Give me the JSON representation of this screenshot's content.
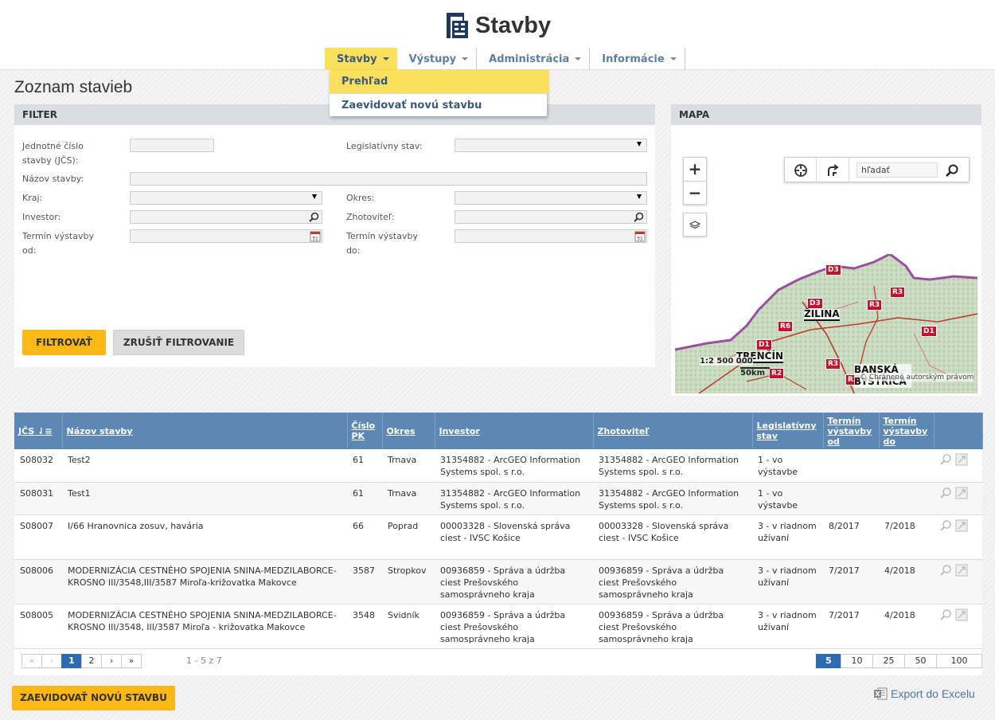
{
  "app": {
    "logo_text": "Stavby"
  },
  "nav": {
    "items": [
      {
        "label": "Stavby"
      },
      {
        "label": "Výstupy"
      },
      {
        "label": "Administrácia"
      },
      {
        "label": "Informácie"
      }
    ],
    "dropdown": [
      {
        "label": "Prehľad"
      },
      {
        "label": "Zaevidovať novú stavbu"
      }
    ]
  },
  "page": {
    "title": "Zoznam stavieb"
  },
  "filter": {
    "header": "FILTER",
    "labels": {
      "jcs": "Jednotné číslo stavby (JČS):",
      "legislativny_stav": "Legislatívny stav:",
      "nazov": "Názov stavby:",
      "kraj": "Kraj:",
      "okres": "Okres:",
      "investor": "Investor:",
      "zhotovitel": "Zhotoviteľ:",
      "termin_od": "Termín výstavby od:",
      "termin_do": "Termín výstavby do:"
    },
    "buttons": {
      "filter": "FILTROVAŤ",
      "reset": "ZRUŠIŤ FILTROVANIE"
    }
  },
  "map": {
    "header": "MAPA",
    "zoom_in": "+",
    "zoom_out": "−",
    "search_placeholder": "hľadať",
    "scale": "1:2 500 000",
    "scale_km": "50km",
    "copyright": "© Chránené autorským právom",
    "towns": [
      "ŽILINA",
      "TRENČÍN",
      "BANSKÁ BYSTRICA"
    ],
    "roads": [
      "D3",
      "D3",
      "R3",
      "R3",
      "R6",
      "D1",
      "D1",
      "R3",
      "R2",
      "R2"
    ]
  },
  "table": {
    "columns": [
      "JČS",
      "Názov stavby",
      "Číslo PK",
      "Okres",
      "Investor",
      "Zhotoviteľ",
      "Legislatívny stav",
      "Termín výstavby od",
      "Termín výstavby do",
      ""
    ],
    "rows": [
      {
        "jcs": "S08032",
        "nazov": "Test2",
        "pk": "61",
        "okres": "Trnava",
        "investor": "31354882 - ArcGEO Information Systems spol. s r.o.",
        "zhotovitel": "31354882 - ArcGEO Information Systems spol. s r.o.",
        "stav": "1 - vo výstavbe",
        "od": "",
        "do": ""
      },
      {
        "jcs": "S08031",
        "nazov": "Test1",
        "pk": "61",
        "okres": "Trnava",
        "investor": "31354882 - ArcGEO Information Systems spol. s r.o.",
        "zhotovitel": "31354882 - ArcGEO Information Systems spol. s r.o.",
        "stav": "1 - vo výstavbe",
        "od": "",
        "do": ""
      },
      {
        "jcs": "S08007",
        "nazov": "I/66 Hranovnica zosuv, havária",
        "pk": "66",
        "okres": "Poprad",
        "investor": "00003328 - Slovenská správa ciest - IVSC Košice",
        "zhotovitel": "00003328 - Slovenská správa ciest - IVSC Košice",
        "stav": "3 - v riadnom užívaní",
        "od": "8/2017",
        "do": "7/2018"
      },
      {
        "jcs": "S08006",
        "nazov": "MODERNIZÁCIA CESTNÉHO SPOJENIA SNINA-MEDZILABORCE- KROSNO III/3548,III/3587 Miroľa-križovatka Makovce",
        "pk": "3587",
        "okres": "Stropkov",
        "investor": "00936859 - Správa a údržba ciest Prešovského samosprávneho kraja",
        "zhotovitel": "00936859 - Správa a údržba ciest Prešovského samosprávneho kraja",
        "stav": "3 - v riadnom užívaní",
        "od": "7/2017",
        "do": "4/2018"
      },
      {
        "jcs": "S08005",
        "nazov": "MODERNIZÁCIA CESTNÉHO SPOJENIA SNINA-MEDZILABORCE- KROSNO III/3548, III/3587 Miroľa - križovatka Makovce",
        "pk": "3548",
        "okres": "Svidník",
        "investor": "00936859 - Správa a údržba ciest Prešovského samosprávneho kraja",
        "zhotovitel": "00936859 - Správa a údržba ciest Prešovského samosprávneho kraja",
        "stav": "3 - v riadnom užívaní",
        "od": "7/2017",
        "do": "4/2018"
      }
    ],
    "pager": {
      "first": "«",
      "prev": "‹",
      "pages": [
        "1",
        "2"
      ],
      "next": "›",
      "last": "»",
      "info": "1 - 5 z 7",
      "sizes": [
        "5",
        "10",
        "25",
        "50",
        "100"
      ]
    }
  },
  "footer": {
    "add_button": "ZAEVIDOVAŤ NOVÚ STAVBU",
    "export": "Export do Excelu"
  },
  "colors": {
    "accent_yellow": "#fbb817",
    "nav_active": "#fbe05e",
    "table_header": "#5d87b4",
    "link_blue": "#4a78a8"
  }
}
